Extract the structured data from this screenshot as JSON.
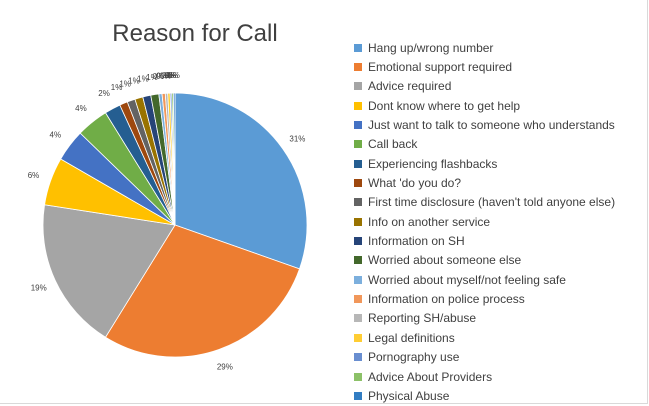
{
  "chart_data": {
    "type": "pie",
    "title": "Reason for Call",
    "legend_position": "right",
    "slices": [
      {
        "label": "Hang up/wrong number",
        "value": 31,
        "display": "31%",
        "color": "#5B9BD5"
      },
      {
        "label": "Emotional support required",
        "value": 29,
        "display": "29%",
        "color": "#ED7D31"
      },
      {
        "label": "Advice required",
        "value": 19,
        "display": "19%",
        "color": "#A5A5A5"
      },
      {
        "label": "Dont know where to get help",
        "value": 6,
        "display": "6%",
        "color": "#FFC000"
      },
      {
        "label": "Just want to talk to someone who understands",
        "value": 4,
        "display": "4%",
        "color": "#4472C4"
      },
      {
        "label": "Call back",
        "value": 4,
        "display": "4%",
        "color": "#70AD47"
      },
      {
        "label": "Experiencing flashbacks",
        "value": 2,
        "display": "2%",
        "color": "#255E91"
      },
      {
        "label": "What 'do you do?",
        "value": 1,
        "display": "1%",
        "color": "#9E480E"
      },
      {
        "label": "First time disclosure (haven't told anyone else)",
        "value": 1,
        "display": "1%",
        "color": "#636363"
      },
      {
        "label": "Info on another service",
        "value": 1,
        "display": "1%",
        "color": "#997300"
      },
      {
        "label": "Information on SH",
        "value": 1,
        "display": "1%",
        "color": "#264478"
      },
      {
        "label": "Worried about someone else",
        "value": 1,
        "display": "1%",
        "color": "#43682B"
      },
      {
        "label": "Worried about myself/not feeling safe",
        "value": 0.4,
        "display": "0%",
        "color": "#7CAFDD"
      },
      {
        "label": "Information on police process",
        "value": 0.4,
        "display": "0%",
        "color": "#F1975A"
      },
      {
        "label": "Reporting SH/abuse",
        "value": 0.3,
        "display": "0%",
        "color": "#B7B7B7"
      },
      {
        "label": "Legal definitions",
        "value": 0.3,
        "display": "0%",
        "color": "#FFCD33"
      },
      {
        "label": "Pornography use",
        "value": 0.2,
        "display": "0%",
        "color": "#698ED0"
      },
      {
        "label": "Advice About Providers",
        "value": 0.2,
        "display": "0%",
        "color": "#8CC168"
      },
      {
        "label": "Physical Abuse",
        "value": 0.2,
        "display": "0%",
        "color": "#327DC2"
      }
    ]
  }
}
